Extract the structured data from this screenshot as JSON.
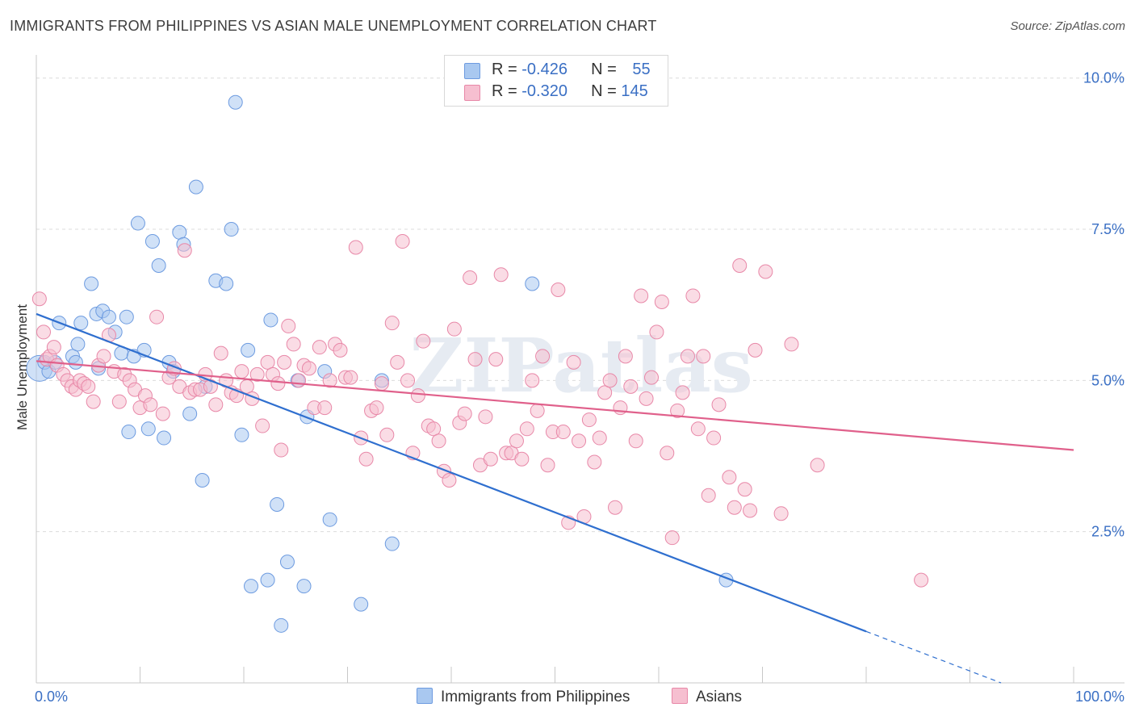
{
  "title": "IMMIGRANTS FROM PHILIPPINES VS ASIAN MALE UNEMPLOYMENT CORRELATION CHART",
  "source": "Source: ZipAtlas.com",
  "watermark": "ZIPatlas",
  "legend": {
    "rows": [
      {
        "r_label": "R = ",
        "r_value": "-0.426",
        "n_label": "N = ",
        "n_value": "55",
        "color": "#a9c8f0",
        "border": "#6d9be0"
      },
      {
        "r_label": "R = ",
        "r_value": "-0.320",
        "n_label": "N = ",
        "n_value": "145",
        "color": "#f6bfd0",
        "border": "#e888a8"
      }
    ]
  },
  "bottom_legend": [
    "Immigrants from Philippines",
    "Asians"
  ],
  "chart_data": {
    "type": "scatter",
    "xlabel": "",
    "ylabel": "Male Unemployment",
    "xlim": [
      0,
      100
    ],
    "ylim": [
      0,
      10.25
    ],
    "x_tick_labels": [
      "0.0%",
      "100.0%"
    ],
    "y_ticks": [
      2.5,
      5.0,
      7.5,
      10.0
    ],
    "y_tick_labels": [
      "2.5%",
      "5.0%",
      "7.5%",
      "10.0%"
    ],
    "grid": true,
    "series": [
      {
        "name": "Immigrants from Philippines",
        "color": "#6d9be0",
        "fill": "#a9c8f0",
        "line_color": "#2f6fcf",
        "trend": {
          "x0": 0,
          "y0": 6.1,
          "x1": 80,
          "y1": 0.85,
          "dash_to_x": 93,
          "dash_to_y": 0
        },
        "points": [
          [
            0.3,
            5.2,
            2
          ],
          [
            0.8,
            5.3,
            1
          ],
          [
            1.2,
            5.15,
            1
          ],
          [
            1.8,
            5.3,
            1
          ],
          [
            2.2,
            5.95,
            1
          ],
          [
            3.5,
            5.4,
            1
          ],
          [
            3.8,
            5.3,
            1
          ],
          [
            4,
            5.6,
            1
          ],
          [
            4.3,
            5.95,
            1
          ],
          [
            5.3,
            6.6,
            1
          ],
          [
            5.8,
            6.1,
            1
          ],
          [
            6,
            5.2,
            1
          ],
          [
            6.4,
            6.15,
            1
          ],
          [
            7,
            6.05,
            1
          ],
          [
            7.6,
            5.8,
            1
          ],
          [
            8.2,
            5.45,
            1
          ],
          [
            8.7,
            6.05,
            1
          ],
          [
            8.9,
            4.15,
            1
          ],
          [
            9.4,
            5.4,
            1
          ],
          [
            9.8,
            7.6,
            1
          ],
          [
            10.4,
            5.5,
            1
          ],
          [
            10.8,
            4.2,
            1
          ],
          [
            11.2,
            7.3,
            1
          ],
          [
            11.8,
            6.9,
            1
          ],
          [
            12.3,
            4.05,
            1
          ],
          [
            12.8,
            5.3,
            1
          ],
          [
            13.2,
            5.15,
            1
          ],
          [
            13.8,
            7.45,
            1
          ],
          [
            14.2,
            7.25,
            1
          ],
          [
            14.8,
            4.45,
            1
          ],
          [
            15.4,
            8.2,
            1
          ],
          [
            16,
            3.35,
            1
          ],
          [
            16.3,
            4.9,
            1
          ],
          [
            17.3,
            6.65,
            1
          ],
          [
            18.3,
            6.6,
            1
          ],
          [
            18.8,
            7.5,
            1
          ],
          [
            19.2,
            9.6,
            1
          ],
          [
            19.8,
            4.1,
            1
          ],
          [
            20.4,
            5.5,
            1
          ],
          [
            20.7,
            1.6,
            1
          ],
          [
            22.3,
            1.7,
            1
          ],
          [
            22.6,
            6.0,
            1
          ],
          [
            23.2,
            2.95,
            1
          ],
          [
            23.6,
            0.95,
            1
          ],
          [
            24.2,
            2.0,
            1
          ],
          [
            25.2,
            5.0,
            1
          ],
          [
            25.8,
            1.6,
            1
          ],
          [
            26.1,
            4.4,
            1
          ],
          [
            27.8,
            5.15,
            1
          ],
          [
            28.3,
            2.7,
            1
          ],
          [
            31.3,
            1.3,
            1
          ],
          [
            33.3,
            5.0,
            1
          ],
          [
            34.3,
            2.3,
            1
          ],
          [
            47.8,
            6.6,
            1
          ],
          [
            66.5,
            1.7,
            1
          ]
        ]
      },
      {
        "name": "Asians",
        "color": "#e888a8",
        "fill": "#f6bfd0",
        "line_color": "#e0608b",
        "trend": {
          "x0": 0,
          "y0": 5.32,
          "x1": 100,
          "y1": 3.85
        },
        "points": [
          [
            0.3,
            6.35,
            1
          ],
          [
            0.7,
            5.8,
            1
          ],
          [
            1,
            5.35,
            1
          ],
          [
            1.3,
            5.4,
            1
          ],
          [
            1.7,
            5.55,
            1
          ],
          [
            2,
            5.25,
            1
          ],
          [
            2.6,
            5.1,
            1
          ],
          [
            3,
            5.0,
            1
          ],
          [
            3.4,
            4.9,
            1
          ],
          [
            3.8,
            4.85,
            1
          ],
          [
            4.2,
            5.0,
            1
          ],
          [
            4.6,
            4.95,
            1
          ],
          [
            5,
            4.9,
            1
          ],
          [
            5.5,
            4.65,
            1
          ],
          [
            6,
            5.25,
            1
          ],
          [
            6.5,
            5.4,
            1
          ],
          [
            7,
            5.75,
            1
          ],
          [
            7.5,
            5.15,
            1
          ],
          [
            8,
            4.65,
            1
          ],
          [
            8.5,
            5.1,
            1
          ],
          [
            9,
            5.0,
            1
          ],
          [
            9.5,
            4.85,
            1
          ],
          [
            10,
            4.55,
            1
          ],
          [
            10.5,
            4.75,
            1
          ],
          [
            11,
            4.6,
            1
          ],
          [
            11.6,
            6.05,
            1
          ],
          [
            12.2,
            4.45,
            1
          ],
          [
            12.8,
            5.05,
            1
          ],
          [
            13.3,
            5.2,
            1
          ],
          [
            13.8,
            4.9,
            1
          ],
          [
            14.3,
            7.15,
            1
          ],
          [
            14.8,
            4.8,
            1
          ],
          [
            15.3,
            4.85,
            1
          ],
          [
            15.8,
            4.85,
            1
          ],
          [
            16.3,
            5.1,
            1
          ],
          [
            16.8,
            4.9,
            1
          ],
          [
            17.3,
            4.6,
            1
          ],
          [
            17.8,
            5.45,
            1
          ],
          [
            18.3,
            5.0,
            1
          ],
          [
            18.8,
            4.8,
            1
          ],
          [
            19.3,
            4.75,
            1
          ],
          [
            19.8,
            5.15,
            1
          ],
          [
            20.3,
            4.9,
            1
          ],
          [
            20.8,
            4.7,
            1
          ],
          [
            21.3,
            5.1,
            1
          ],
          [
            21.8,
            4.25,
            1
          ],
          [
            22.3,
            5.3,
            1
          ],
          [
            22.8,
            5.1,
            1
          ],
          [
            23.3,
            4.95,
            1
          ],
          [
            23.6,
            3.85,
            1
          ],
          [
            23.9,
            5.3,
            1
          ],
          [
            24.3,
            5.9,
            1
          ],
          [
            24.8,
            5.6,
            1
          ],
          [
            25.3,
            5.0,
            1
          ],
          [
            25.8,
            5.25,
            1
          ],
          [
            26.3,
            5.2,
            1
          ],
          [
            26.8,
            4.55,
            1
          ],
          [
            27.3,
            5.55,
            1
          ],
          [
            27.8,
            4.55,
            1
          ],
          [
            28.3,
            5.0,
            1
          ],
          [
            28.8,
            5.6,
            1
          ],
          [
            29.3,
            5.5,
            1
          ],
          [
            29.8,
            5.05,
            1
          ],
          [
            30.3,
            5.05,
            1
          ],
          [
            30.8,
            7.2,
            1
          ],
          [
            31.3,
            4.05,
            1
          ],
          [
            31.8,
            3.7,
            1
          ],
          [
            32.3,
            4.5,
            1
          ],
          [
            32.8,
            4.55,
            1
          ],
          [
            33.3,
            4.95,
            1
          ],
          [
            33.8,
            4.1,
            1
          ],
          [
            34.3,
            5.95,
            1
          ],
          [
            34.8,
            5.3,
            1
          ],
          [
            35.3,
            7.3,
            1
          ],
          [
            35.8,
            5.0,
            1
          ],
          [
            36.3,
            3.8,
            1
          ],
          [
            36.8,
            4.75,
            1
          ],
          [
            37.3,
            5.65,
            1
          ],
          [
            37.8,
            4.25,
            1
          ],
          [
            38.3,
            4.2,
            1
          ],
          [
            38.8,
            4.0,
            1
          ],
          [
            39.3,
            3.5,
            1
          ],
          [
            39.8,
            3.35,
            1
          ],
          [
            40.3,
            5.85,
            1
          ],
          [
            40.8,
            4.3,
            1
          ],
          [
            41.3,
            4.45,
            1
          ],
          [
            41.8,
            6.7,
            1
          ],
          [
            42.3,
            5.35,
            1
          ],
          [
            42.8,
            3.6,
            1
          ],
          [
            43.3,
            4.4,
            1
          ],
          [
            43.8,
            3.7,
            1
          ],
          [
            44.3,
            5.35,
            1
          ],
          [
            44.8,
            6.75,
            1
          ],
          [
            45.3,
            3.8,
            1
          ],
          [
            45.8,
            3.8,
            1
          ],
          [
            46.3,
            4.0,
            1
          ],
          [
            46.8,
            3.7,
            1
          ],
          [
            47.3,
            4.2,
            1
          ],
          [
            47.8,
            5.0,
            1
          ],
          [
            48.3,
            4.5,
            1
          ],
          [
            48.8,
            5.4,
            1
          ],
          [
            49.3,
            3.6,
            1
          ],
          [
            49.8,
            4.15,
            1
          ],
          [
            50.3,
            6.5,
            1
          ],
          [
            50.8,
            4.15,
            1
          ],
          [
            51.3,
            2.65,
            1
          ],
          [
            51.8,
            5.3,
            1
          ],
          [
            52.3,
            4.0,
            1
          ],
          [
            52.8,
            2.75,
            1
          ],
          [
            53.3,
            4.35,
            1
          ],
          [
            53.8,
            3.65,
            1
          ],
          [
            54.3,
            4.05,
            1
          ],
          [
            54.8,
            4.8,
            1
          ],
          [
            55.3,
            5.0,
            1
          ],
          [
            55.8,
            2.9,
            1
          ],
          [
            56.3,
            4.55,
            1
          ],
          [
            56.8,
            5.4,
            1
          ],
          [
            57.3,
            4.9,
            1
          ],
          [
            57.8,
            4.0,
            1
          ],
          [
            58.3,
            6.4,
            1
          ],
          [
            58.8,
            4.7,
            1
          ],
          [
            59.3,
            5.05,
            1
          ],
          [
            59.8,
            5.8,
            1
          ],
          [
            60.3,
            6.3,
            1
          ],
          [
            60.8,
            3.8,
            1
          ],
          [
            61.3,
            2.4,
            1
          ],
          [
            61.8,
            4.5,
            1
          ],
          [
            62.3,
            4.8,
            1
          ],
          [
            62.8,
            5.4,
            1
          ],
          [
            63.3,
            6.4,
            1
          ],
          [
            63.8,
            4.2,
            1
          ],
          [
            64.3,
            5.4,
            1
          ],
          [
            64.8,
            3.1,
            1
          ],
          [
            65.3,
            4.05,
            1
          ],
          [
            65.8,
            4.6,
            1
          ],
          [
            66.8,
            3.4,
            1
          ],
          [
            67.3,
            2.9,
            1
          ],
          [
            67.8,
            6.9,
            1
          ],
          [
            68.3,
            3.2,
            1
          ],
          [
            68.8,
            2.85,
            1
          ],
          [
            69.3,
            5.5,
            1
          ],
          [
            70.3,
            6.8,
            1
          ],
          [
            71.8,
            2.8,
            1
          ],
          [
            72.8,
            5.6,
            1
          ],
          [
            75.3,
            3.6,
            1
          ],
          [
            85.3,
            1.7,
            1
          ]
        ]
      }
    ]
  }
}
